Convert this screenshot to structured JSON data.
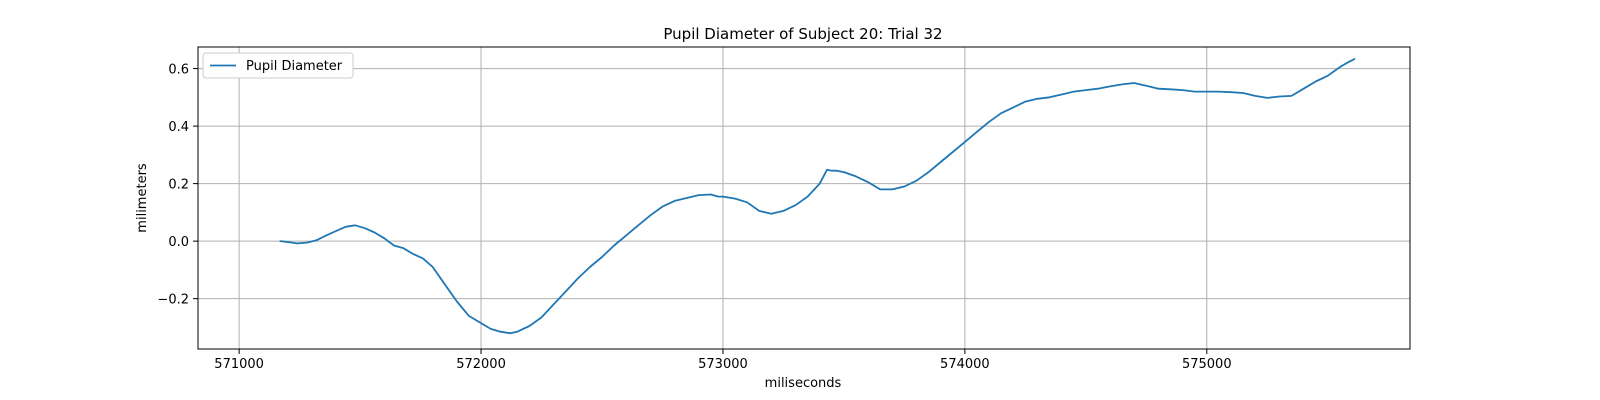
{
  "chart_data": {
    "type": "line",
    "title": "Pupil Diameter of Subject 20: Trial 32",
    "xlabel": "miliseconds",
    "ylabel": "milimeters",
    "xlim": [
      570830,
      575840
    ],
    "ylim": [
      -0.375,
      0.675
    ],
    "xticks": [
      571000,
      572000,
      573000,
      574000,
      575000
    ],
    "xtick_labels": [
      "571000",
      "572000",
      "573000",
      "574000",
      "575000"
    ],
    "yticks": [
      -0.2,
      0.0,
      0.2,
      0.4,
      0.6
    ],
    "ytick_labels": [
      "−0.2",
      "0.0",
      "0.2",
      "0.4",
      "0.6"
    ],
    "grid": true,
    "legend_position": "upper-left",
    "series": [
      {
        "name": "Pupil Diameter",
        "color": "#1f77b4",
        "x": [
          571170,
          571200,
          571240,
          571280,
          571320,
          571360,
          571400,
          571440,
          571480,
          571520,
          571560,
          571600,
          571640,
          571680,
          571720,
          571760,
          571800,
          571850,
          571900,
          571950,
          572000,
          572040,
          572080,
          572120,
          572150,
          572200,
          572250,
          572300,
          572350,
          572400,
          572450,
          572500,
          572550,
          572600,
          572650,
          572700,
          572750,
          572800,
          572850,
          572900,
          572950,
          572980,
          573000,
          573050,
          573100,
          573150,
          573200,
          573250,
          573300,
          573350,
          573400,
          573430,
          573450,
          573470,
          573500,
          573550,
          573600,
          573650,
          573700,
          573750,
          573800,
          573850,
          573900,
          573950,
          574000,
          574050,
          574100,
          574150,
          574200,
          574250,
          574300,
          574350,
          574400,
          574450,
          574500,
          574550,
          574600,
          574650,
          574700,
          574750,
          574800,
          574850,
          574900,
          574950,
          575000,
          575050,
          575100,
          575150,
          575200,
          575250,
          575300,
          575350,
          575400,
          575450,
          575500,
          575550,
          575580,
          575610
        ],
        "y": [
          0.0,
          -0.003,
          -0.008,
          -0.005,
          0.003,
          0.02,
          0.035,
          0.05,
          0.055,
          0.045,
          0.03,
          0.01,
          -0.015,
          -0.025,
          -0.045,
          -0.06,
          -0.09,
          -0.15,
          -0.21,
          -0.26,
          -0.285,
          -0.305,
          -0.315,
          -0.32,
          -0.315,
          -0.295,
          -0.265,
          -0.22,
          -0.175,
          -0.13,
          -0.09,
          -0.055,
          -0.015,
          0.02,
          0.055,
          0.09,
          0.12,
          0.14,
          0.15,
          0.16,
          0.162,
          0.155,
          0.155,
          0.148,
          0.135,
          0.105,
          0.095,
          0.105,
          0.125,
          0.155,
          0.2,
          0.248,
          0.245,
          0.245,
          0.24,
          0.225,
          0.205,
          0.18,
          0.18,
          0.19,
          0.21,
          0.24,
          0.275,
          0.31,
          0.345,
          0.38,
          0.415,
          0.445,
          0.465,
          0.485,
          0.495,
          0.5,
          0.51,
          0.52,
          0.525,
          0.53,
          0.538,
          0.545,
          0.55,
          0.54,
          0.53,
          0.528,
          0.525,
          0.52,
          0.52,
          0.52,
          0.518,
          0.515,
          0.505,
          0.498,
          0.503,
          0.505,
          0.53,
          0.555,
          0.575,
          0.605,
          0.62,
          0.633
        ]
      }
    ]
  }
}
